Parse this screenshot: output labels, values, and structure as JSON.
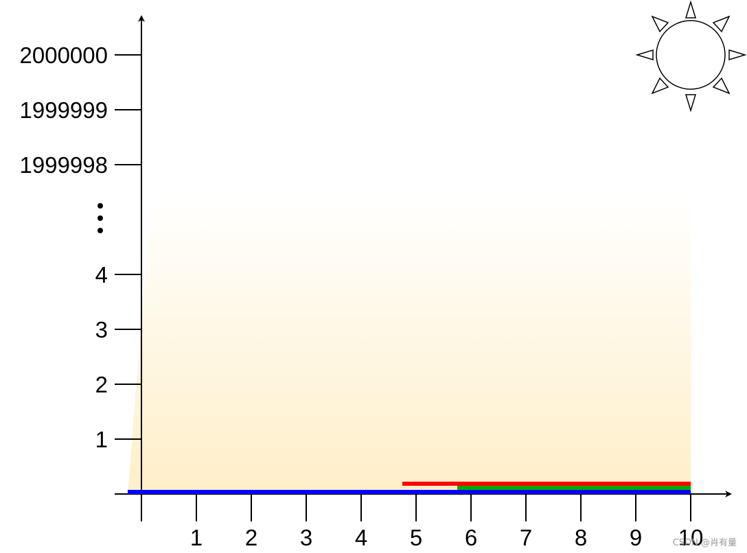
{
  "diagram": {
    "y_tick_labels": [
      "1",
      "2",
      "3",
      "4",
      "1999998",
      "1999999",
      "2000000"
    ],
    "y_ellipsis": "⋮",
    "x_tick_labels": [
      "1",
      "2",
      "3",
      "4",
      "5",
      "6",
      "7",
      "8",
      "9",
      "10"
    ],
    "icons": {
      "sun": "sun-icon"
    },
    "segments": [
      {
        "color": "#0000ff",
        "start": 0,
        "end": 10
      },
      {
        "color": "#ff0000",
        "start": 4.75,
        "end": 10
      },
      {
        "color": "#00aa00",
        "start": 5.75,
        "end": 10
      }
    ],
    "colors": {
      "axis": "#000000",
      "gradient_top": "#ffffff",
      "gradient_bottom": "#ffefc8"
    }
  },
  "watermark": "CSDN @肖有量"
}
